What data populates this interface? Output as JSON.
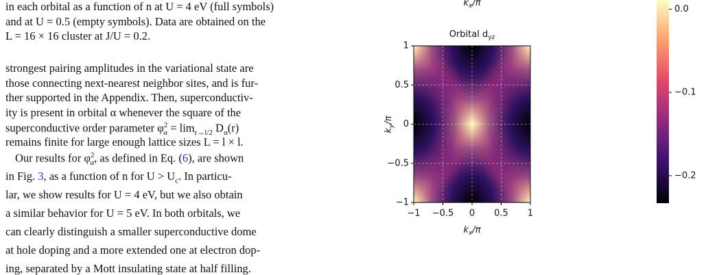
{
  "caption": [
    "in each orbital as a function of n at U = 4 eV (full symbols)",
    "and at U = 0.5 (empty symbols). Data are obtained on the",
    "L = 16 × 16 cluster at J/U = 0.2."
  ],
  "body": [
    "strongest pairing amplitudes in the variational state are",
    "those connecting next-nearest neighbor sites, and is fur-",
    "ther supported in the Appendix. Then, superconductiv-",
    "ity is present in orbital α whenever the square of the",
    [
      "superconductive order parameter φ",
      "2",
      "α",
      " = lim",
      "r→l/2",
      " D",
      "α",
      "(r)"
    ],
    "remains finite for large enough lattice sizes L = l × l.",
    [
      "Our results for φ",
      "2",
      "α",
      ", as defined in Eq. (",
      "6",
      "), are shown"
    ],
    [
      "in Fig. ",
      "3",
      ", as a function of n for U > U",
      "c",
      ". In particu-"
    ],
    "lar, we show results for U = 4 eV, but we also obtain",
    "a similar behavior for U = 5 eV. In both orbitals, we",
    "can clearly distinguish a smaller superconductive dome",
    "at hole doping and a more extended one at electron dop-",
    "ing, separated by a Mott insulating state at half filling."
  ],
  "figure": {
    "top_label": [
      "k",
      "x",
      "/π"
    ],
    "title": [
      "Orbital d",
      "yz"
    ],
    "xlabel": [
      "k",
      "x",
      "/π"
    ],
    "ylabel": [
      "k",
      "y",
      "/π"
    ],
    "xlim": [
      -1,
      1
    ],
    "ylim": [
      -1,
      1
    ],
    "xticks": [
      {
        "value": -1,
        "label": "−1"
      },
      {
        "value": -0.5,
        "label": "−0.5"
      },
      0,
      0.5,
      1
    ],
    "yticks": [
      {
        "value": -1,
        "label": "−1"
      },
      {
        "value": -0.5,
        "label": "−0.5"
      },
      0,
      0.5,
      1
    ],
    "grid": true,
    "clim": [
      -0.233,
      0.011
    ],
    "cticks": [
      {
        "value": 0,
        "label": "0.0"
      },
      {
        "value": -0.1,
        "label": "−0.1"
      },
      {
        "value": -0.2,
        "label": "−0.2"
      }
    ]
  }
}
